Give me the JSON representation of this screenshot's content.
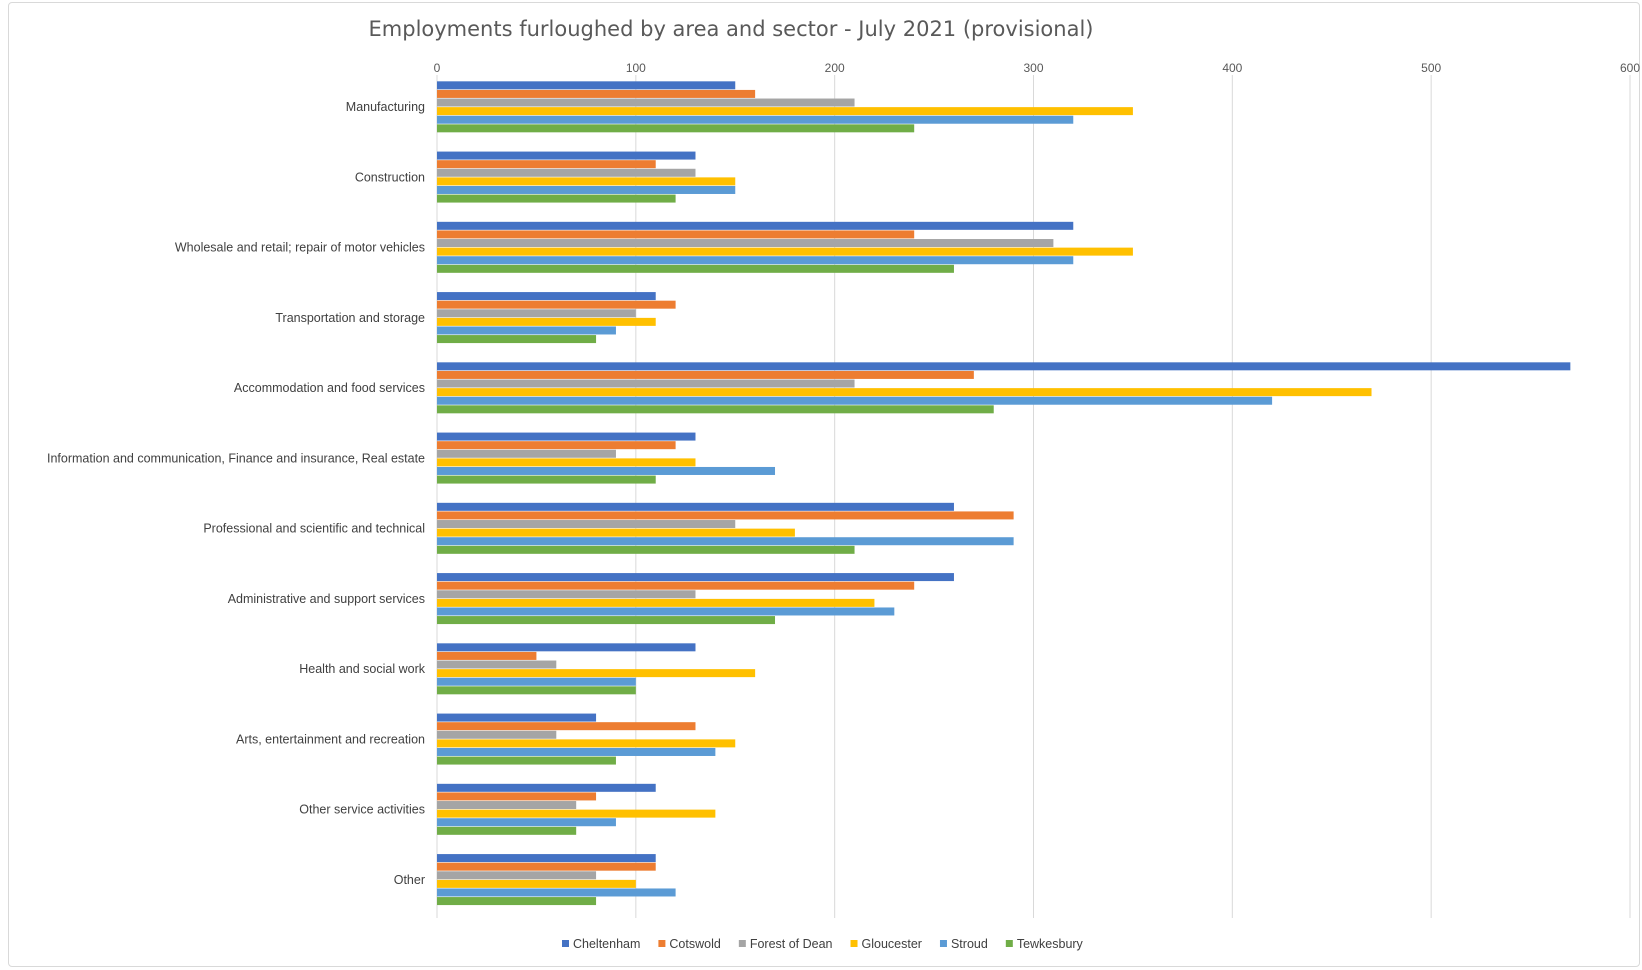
{
  "chart_data": {
    "type": "bar",
    "orientation": "horizontal",
    "title": "Employments furloughed by area and sector - July 2021 (provisional)",
    "xlim": [
      0,
      600
    ],
    "x_ticks": [
      0,
      100,
      200,
      300,
      400,
      500,
      600
    ],
    "x_axis_position": "top",
    "grid": true,
    "legend_position": "bottom",
    "categories": [
      "Manufacturing",
      "Construction",
      "Wholesale and retail; repair of motor vehicles",
      "Transportation and storage",
      "Accommodation and food services",
      "Information and communication, Finance and insurance, Real estate",
      "Professional and scientific and technical",
      "Administrative and support services",
      "Health and social work",
      "Arts, entertainment and recreation",
      "Other service activities",
      "Other"
    ],
    "series": [
      {
        "name": "Cheltenham",
        "color": "#4472C4",
        "values": [
          150,
          130,
          320,
          110,
          570,
          130,
          260,
          260,
          130,
          80,
          110,
          110
        ]
      },
      {
        "name": "Cotswold",
        "color": "#ED7D31",
        "values": [
          160,
          110,
          240,
          120,
          270,
          120,
          290,
          240,
          50,
          130,
          80,
          110
        ]
      },
      {
        "name": "Forest of Dean",
        "color": "#A5A5A5",
        "values": [
          210,
          130,
          310,
          100,
          210,
          90,
          150,
          130,
          60,
          60,
          70,
          80
        ]
      },
      {
        "name": "Gloucester",
        "color": "#FFC000",
        "values": [
          350,
          150,
          350,
          110,
          470,
          130,
          180,
          220,
          160,
          150,
          140,
          100
        ]
      },
      {
        "name": "Stroud",
        "color": "#5B9BD5",
        "values": [
          320,
          150,
          320,
          90,
          420,
          170,
          290,
          230,
          100,
          140,
          90,
          120
        ]
      },
      {
        "name": "Tewkesbury",
        "color": "#70AD47",
        "values": [
          240,
          120,
          260,
          80,
          280,
          110,
          210,
          170,
          100,
          90,
          70,
          80
        ]
      }
    ]
  }
}
